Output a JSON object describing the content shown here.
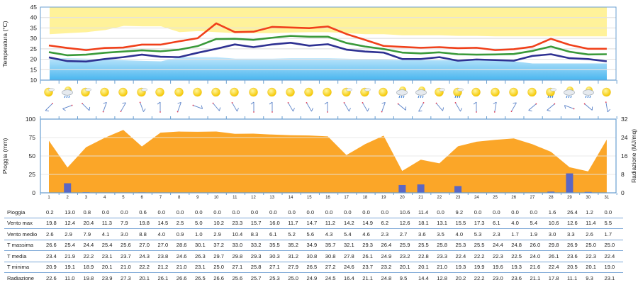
{
  "colors": {
    "t_max": "#f0401a",
    "t_med": "#3a9a3a",
    "t_min": "#2e3192",
    "hot_band": "#fff29a",
    "cold_band": "#49b6ef",
    "radiation_area": "#fba628",
    "rain_bar": "#5b67c4",
    "axis": "#6a9fd1",
    "table_rule": "#7aa6d6"
  },
  "chart_data": [
    {
      "type": "line",
      "title": "",
      "ylabel": "Temperatura (°C)",
      "xlabel": "",
      "ylim": [
        10,
        45
      ],
      "yticks": [
        10,
        15,
        20,
        25,
        30,
        35,
        40,
        45
      ],
      "grid": true,
      "x": [
        1,
        2,
        3,
        4,
        5,
        6,
        7,
        8,
        9,
        10,
        11,
        12,
        13,
        14,
        15,
        16,
        17,
        18,
        19,
        20,
        21,
        22,
        23,
        24,
        25,
        26,
        27,
        28,
        29,
        30,
        31
      ],
      "series": [
        {
          "name": "T massima",
          "color": "#f0401a",
          "values": [
            26.6,
            25.4,
            24.4,
            25.4,
            25.6,
            27.0,
            27.0,
            28.6,
            30.1,
            37.2,
            33.0,
            33.2,
            35.5,
            35.2,
            34.9,
            35.7,
            32.1,
            29.3,
            26.4,
            25.9,
            25.5,
            25.8,
            25.3,
            25.5,
            24.4,
            24.8,
            26.0,
            29.8,
            26.9,
            25.0,
            25.0
          ]
        },
        {
          "name": "T media",
          "color": "#3a9a3a",
          "values": [
            23.4,
            21.9,
            22.2,
            23.1,
            23.7,
            24.3,
            23.8,
            24.6,
            26.3,
            29.7,
            29.8,
            29.3,
            30.3,
            31.2,
            30.8,
            30.8,
            27.8,
            26.1,
            24.9,
            23.2,
            22.8,
            23.3,
            22.4,
            22.2,
            22.3,
            22.5,
            24.0,
            26.1,
            23.6,
            22.3,
            22.4
          ]
        },
        {
          "name": "T minima",
          "color": "#2e3192",
          "values": [
            20.9,
            19.1,
            18.9,
            20.1,
            21.0,
            22.2,
            21.2,
            21.0,
            23.1,
            25.0,
            27.1,
            25.8,
            27.1,
            27.9,
            26.5,
            27.2,
            24.6,
            23.7,
            23.2,
            20.1,
            20.1,
            21.0,
            19.3,
            19.9,
            19.6,
            19.3,
            21.6,
            22.4,
            20.5,
            20.1,
            19.0
          ]
        }
      ],
      "bands": {
        "hot_band_lower": [
          32,
          32.5,
          33,
          34,
          36,
          35.8,
          35.8,
          33,
          33.5,
          33,
          32.5,
          32.5,
          32.5,
          32.8,
          33,
          33,
          32.5,
          32,
          32,
          31.5,
          31.5,
          31.5,
          31.2,
          31.2,
          31,
          31,
          31,
          31,
          31,
          31,
          31
        ],
        "cold_band_upper": [
          20.5,
          20.5,
          20.3,
          20,
          19.5,
          19.2,
          19,
          21,
          21,
          21,
          20.3,
          20.3,
          20.3,
          20.5,
          20.5,
          20.5,
          20.3,
          20,
          19.8,
          19.5,
          19.5,
          19.5,
          19.5,
          19.5,
          19.3,
          19,
          18,
          18,
          18,
          18,
          18
        ]
      }
    },
    {
      "type": "bar+area",
      "title": "",
      "ylabel": "Pioggia (mm)",
      "ylabel_right": "Radiazione (MJ/mq)",
      "ylim": [
        0,
        100
      ],
      "ylim_right": [
        0,
        32
      ],
      "yticks": [
        0,
        25,
        50,
        75,
        100
      ],
      "yticks_right": [
        0,
        8,
        16,
        24,
        32
      ],
      "grid": true,
      "x": [
        1,
        2,
        3,
        4,
        5,
        6,
        7,
        8,
        9,
        10,
        11,
        12,
        13,
        14,
        15,
        16,
        17,
        18,
        19,
        20,
        21,
        22,
        23,
        24,
        25,
        26,
        27,
        28,
        29,
        30,
        31
      ],
      "series": [
        {
          "name": "Pioggia",
          "type": "bar",
          "axis": "left",
          "color": "#5b67c4",
          "values": [
            0.2,
            13.0,
            0.8,
            0.0,
            0.0,
            0.6,
            0.0,
            0.0,
            0.0,
            0.0,
            0.0,
            0.0,
            0.0,
            0.0,
            0.0,
            0.0,
            0.0,
            0.0,
            0.0,
            10.6,
            11.4,
            0.0,
            9.2,
            0.0,
            0.0,
            0.0,
            0.0,
            1.6,
            26.4,
            1.2,
            0.0
          ]
        },
        {
          "name": "Radiazione",
          "type": "area",
          "axis": "right",
          "color": "#fba628",
          "values": [
            22.6,
            11.0,
            19.8,
            23.9,
            27.3,
            20.1,
            26.1,
            26.6,
            26.5,
            26.6,
            25.6,
            25.7,
            25.3,
            25.0,
            24.9,
            24.5,
            16.4,
            21.1,
            24.8,
            9.5,
            14.4,
            12.8,
            20.2,
            22.2,
            23.0,
            23.6,
            21.1,
            17.8,
            11.1,
            9.3,
            23.1
          ]
        }
      ]
    }
  ],
  "weather_icons": [
    "sun-cloud",
    "cloud-rain",
    "sun-cloud",
    "sun",
    "sun",
    "sun-cloud",
    "sun",
    "sun",
    "sun",
    "sun",
    "sun",
    "sun",
    "sun",
    "sun",
    "sun",
    "sun",
    "sun-cloud",
    "sun-cloud",
    "sun",
    "cloud-rain",
    "cloud-rain",
    "sun-cloud",
    "sun-cloud-rain",
    "sun",
    "sun",
    "sun",
    "sun",
    "sun-cloud-rain",
    "cloud-rain",
    "cloud-rain",
    "sun"
  ],
  "wind_dirs_deg": [
    135,
    160,
    45,
    290,
    300,
    70,
    270,
    290,
    20,
    50,
    60,
    270,
    270,
    60,
    60,
    270,
    60,
    60,
    290,
    40,
    120,
    50,
    60,
    270,
    280,
    300,
    140,
    140,
    200,
    40,
    80
  ],
  "table": {
    "rows": [
      {
        "label": "Pioggia",
        "values": [
          "0.2",
          "13.0",
          "0.8",
          "0.0",
          "0.0",
          "0.6",
          "0.0",
          "0.0",
          "0.0",
          "0.0",
          "0.0",
          "0.0",
          "0.0",
          "0.0",
          "0.0",
          "0.0",
          "0.0",
          "0.0",
          "0.0",
          "10.6",
          "11.4",
          "0.0",
          "9.2",
          "0.0",
          "0.0",
          "0.0",
          "0.0",
          "1.6",
          "26.4",
          "1.2",
          "0.0"
        ]
      },
      {
        "label": "Vento max",
        "values": [
          "19.8",
          "12.4",
          "20.4",
          "11.3",
          "7.9",
          "19.8",
          "14.5",
          "2.5",
          "5.0",
          "10.2",
          "23.3",
          "15.7",
          "16.0",
          "11.7",
          "14.7",
          "11.2",
          "14.2",
          "14.9",
          "6.2",
          "12.6",
          "18.1",
          "13.1",
          "15.5",
          "17.3",
          "6.1",
          "4.0",
          "5.4",
          "10.6",
          "12.6",
          "11.4",
          "5.5"
        ]
      },
      {
        "label": "Vento medio",
        "values": [
          "2.6",
          "2.9",
          "7.9",
          "4.1",
          "3.0",
          "8.8",
          "4.0",
          "0.9",
          "1.0",
          "2.9",
          "10.4",
          "8.3",
          "6.1",
          "5.2",
          "5.6",
          "4.3",
          "5.4",
          "4.6",
          "2.3",
          "2.7",
          "3.6",
          "3.5",
          "4.0",
          "5.3",
          "2.3",
          "1.7",
          "1.9",
          "3.0",
          "3.3",
          "2.6",
          "1.7"
        ]
      },
      {
        "label": "T massima",
        "values": [
          "26.6",
          "25.4",
          "24.4",
          "25.4",
          "25.6",
          "27.0",
          "27.0",
          "28.6",
          "30.1",
          "37.2",
          "33.0",
          "33.2",
          "35.5",
          "35.2",
          "34.9",
          "35.7",
          "32.1",
          "29.3",
          "26.4",
          "25.9",
          "25.5",
          "25.8",
          "25.3",
          "25.5",
          "24.4",
          "24.8",
          "26.0",
          "29.8",
          "26.9",
          "25.0",
          "25.0"
        ]
      },
      {
        "label": "T media",
        "values": [
          "23.4",
          "21.9",
          "22.2",
          "23.1",
          "23.7",
          "24.3",
          "23.8",
          "24.6",
          "26.3",
          "29.7",
          "29.8",
          "29.3",
          "30.3",
          "31.2",
          "30.8",
          "30.8",
          "27.8",
          "26.1",
          "24.9",
          "23.2",
          "22.8",
          "23.3",
          "22.4",
          "22.2",
          "22.3",
          "22.5",
          "24.0",
          "26.1",
          "23.6",
          "22.3",
          "22.4"
        ]
      },
      {
        "label": "T minima",
        "values": [
          "20.9",
          "19.1",
          "18.9",
          "20.1",
          "21.0",
          "22.2",
          "21.2",
          "21.0",
          "23.1",
          "25.0",
          "27.1",
          "25.8",
          "27.1",
          "27.9",
          "26.5",
          "27.2",
          "24.6",
          "23.7",
          "23.2",
          "20.1",
          "20.1",
          "21.0",
          "19.3",
          "19.9",
          "19.6",
          "19.3",
          "21.6",
          "22.4",
          "20.5",
          "20.1",
          "19.0"
        ]
      },
      {
        "label": "Radiazione",
        "values": [
          "22.6",
          "11.0",
          "19.8",
          "23.9",
          "27.3",
          "20.1",
          "26.1",
          "26.6",
          "26.5",
          "26.6",
          "25.6",
          "25.7",
          "25.3",
          "25.0",
          "24.9",
          "24.5",
          "16.4",
          "21.1",
          "24.8",
          "9.5",
          "14.4",
          "12.8",
          "20.2",
          "22.2",
          "23.0",
          "23.6",
          "21.1",
          "17.8",
          "11.1",
          "9.3",
          "23.1"
        ]
      }
    ]
  }
}
